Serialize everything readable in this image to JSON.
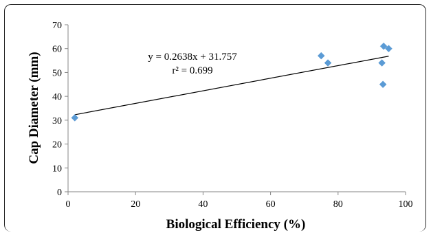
{
  "chart_data": {
    "type": "scatter",
    "title": "",
    "xlabel": "Biological Efficiency (%)",
    "ylabel": "Cap Diameter (mm)",
    "xlim": [
      0,
      100
    ],
    "ylim": [
      0,
      70
    ],
    "x_ticks": [
      0,
      20,
      40,
      60,
      80,
      100
    ],
    "y_ticks": [
      0,
      10,
      20,
      30,
      40,
      50,
      60,
      70
    ],
    "grid": false,
    "legend": "none",
    "series": [
      {
        "color": "#5B9BD5",
        "marker": "diamond",
        "points": [
          {
            "x": 2,
            "y": 31
          },
          {
            "x": 75,
            "y": 57
          },
          {
            "x": 77,
            "y": 54
          },
          {
            "x": 93,
            "y": 54
          },
          {
            "x": 93.5,
            "y": 61
          },
          {
            "x": 93.3,
            "y": 45
          },
          {
            "x": 95,
            "y": 60
          }
        ]
      }
    ],
    "trendline": {
      "type": "linear",
      "slope": 0.2638,
      "intercept": 31.757,
      "x_range": [
        2,
        95
      ],
      "color": "#000000"
    },
    "annotations": {
      "equation": "y = 0.2638x + 31.757",
      "r_squared": "r² = 0.699"
    }
  }
}
